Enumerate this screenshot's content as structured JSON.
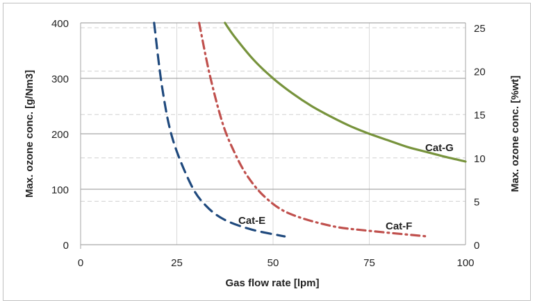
{
  "chart_data": {
    "type": "line",
    "title": "",
    "xlabel": "Gas flow rate [lpm]",
    "ylabel": "Max. ozone conc. [g/Nm3]",
    "y2label": "Max. ozone conc. [%wt]",
    "xlim": [
      0,
      100
    ],
    "ylim": [
      0,
      400
    ],
    "y2lim": [
      0,
      25.56
    ],
    "xticks": [
      0,
      25,
      50,
      75,
      100
    ],
    "yticks": [
      0,
      100,
      200,
      300,
      400
    ],
    "y2ticks": [
      0,
      5,
      10,
      15,
      20,
      25
    ],
    "grid": true,
    "legend": "none",
    "series": [
      {
        "name": "Cat-E",
        "color": "#1f497d",
        "style": "long-dash",
        "x": [
          19.1,
          21.2,
          23.9,
          28.7,
          32.6,
          37.4,
          44.6,
          53
        ],
        "y": [
          400,
          283,
          191,
          108,
          70,
          45,
          27,
          15
        ]
      },
      {
        "name": "Cat-F",
        "color": "#c0504d",
        "style": "dash-dot",
        "x": [
          30.8,
          33.5,
          36.8,
          39.8,
          43.4,
          48.2,
          54.3,
          65,
          75,
          90
        ],
        "y": [
          400,
          308,
          221,
          169,
          123,
          84,
          56,
          34,
          25,
          15
        ]
      },
      {
        "name": "Cat-G",
        "color": "#77933c",
        "style": "solid",
        "x": [
          37.5,
          40,
          45,
          50,
          55,
          60,
          65,
          70,
          75,
          80,
          85,
          90,
          95,
          100
        ],
        "y": [
          400,
          375,
          333,
          300,
          273,
          250,
          231,
          214,
          200,
          188,
          176,
          167,
          158,
          150
        ]
      }
    ]
  }
}
